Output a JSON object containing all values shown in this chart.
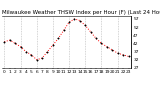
{
  "title": "Milwaukee Weather THSW Index per Hour (F) (Last 24 Hours)",
  "hours": [
    0,
    1,
    2,
    3,
    4,
    5,
    6,
    7,
    8,
    9,
    10,
    11,
    12,
    13,
    14,
    15,
    16,
    17,
    18,
    19,
    20,
    21,
    22,
    23
  ],
  "values": [
    43,
    44,
    42,
    40,
    37,
    35,
    32,
    33,
    37,
    41,
    45,
    50,
    55,
    57,
    56,
    53,
    49,
    45,
    42,
    40,
    38,
    36,
    35,
    34
  ],
  "ylim": [
    27,
    59
  ],
  "yticks": [
    57,
    52,
    47,
    42,
    37,
    32,
    27
  ],
  "grid_hours": [
    0,
    3,
    6,
    9,
    12,
    15,
    18,
    21
  ],
  "line_color": "#ff0000",
  "marker_color": "#000000",
  "bg_color": "#ffffff",
  "title_fontsize": 4.0,
  "tick_fontsize": 3.2,
  "grid_color": "#aaaaaa"
}
